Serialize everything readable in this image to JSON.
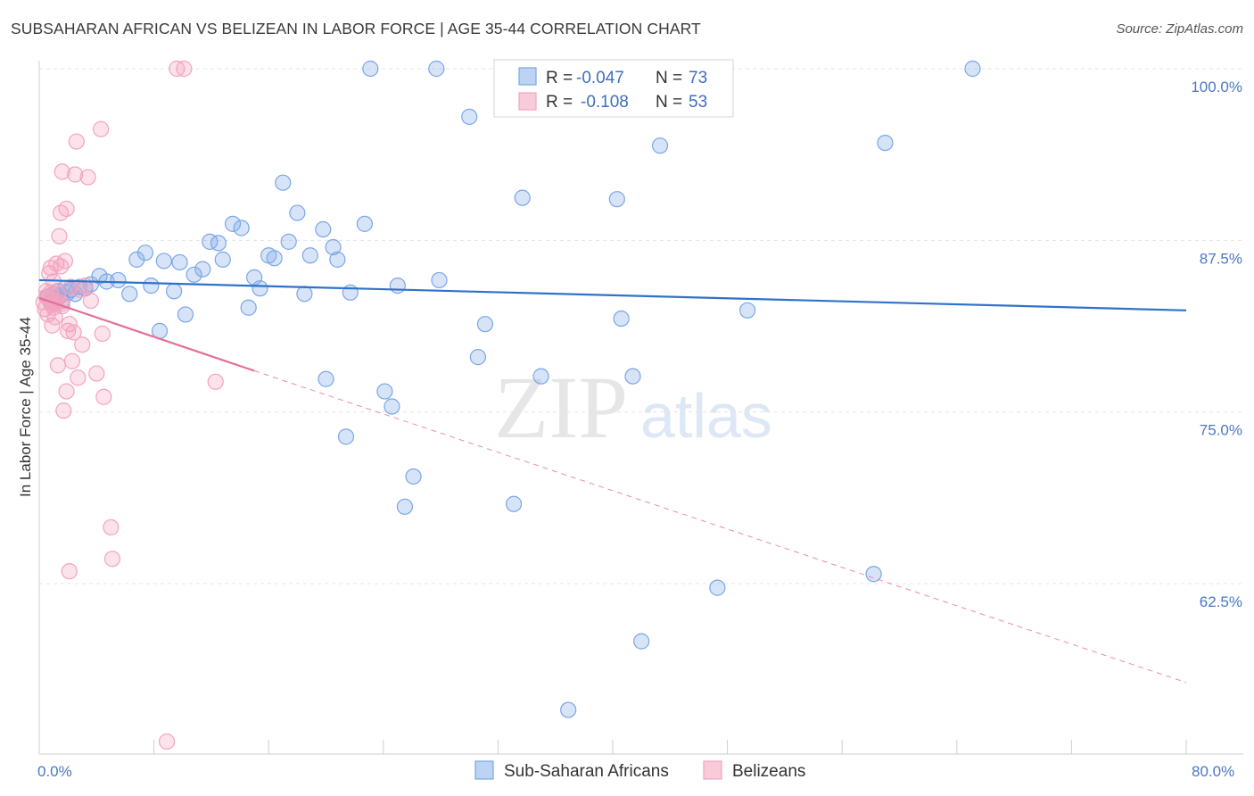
{
  "chart_data": {
    "type": "scatter",
    "title": "SUBSAHARAN AFRICAN VS BELIZEAN IN LABOR FORCE | AGE 35-44 CORRELATION CHART",
    "source": "Source: ZipAtlas.com",
    "watermark": {
      "zip": "ZIP",
      "atlas": "atlas"
    },
    "ylabel": "In Labor Force | Age 35-44",
    "xlim": [
      0,
      80
    ],
    "ylim": [
      51,
      102
    ],
    "x_tick_labels": {
      "left": "0.0%",
      "right": "80.0%"
    },
    "y_ticks": [
      {
        "value": 100,
        "label": "100.0%"
      },
      {
        "value": 87.5,
        "label": "87.5%"
      },
      {
        "value": 75,
        "label": "75.0%"
      },
      {
        "value": 62.5,
        "label": "62.5%"
      }
    ],
    "legend": {
      "r_label": "R =",
      "n_label": "N =",
      "entries": [
        {
          "r": "-0.047",
          "n": "73"
        },
        {
          "r": "-0.108",
          "n": "53"
        }
      ]
    },
    "series": [
      {
        "name": "Sub-Saharan Africans",
        "color": "#7aa6e8",
        "line_color": "#2f72c9",
        "trend": {
          "x0": 0,
          "y0": 84.6,
          "x1": 80,
          "y1": 82.4
        },
        "points": [
          [
            0.6,
            83.4
          ],
          [
            0.8,
            83.0
          ],
          [
            1.0,
            83.6
          ],
          [
            1.2,
            83.2
          ],
          [
            1.3,
            83.8
          ],
          [
            1.5,
            83.5
          ],
          [
            1.6,
            83.1
          ],
          [
            1.8,
            84.0
          ],
          [
            2.0,
            83.7
          ],
          [
            2.2,
            83.9
          ],
          [
            2.5,
            83.6
          ],
          [
            2.8,
            84.1
          ],
          [
            3.2,
            84.0
          ],
          [
            3.6,
            84.3
          ],
          [
            4.2,
            84.9
          ],
          [
            4.7,
            84.5
          ],
          [
            5.5,
            84.6
          ],
          [
            6.3,
            83.6
          ],
          [
            6.8,
            86.1
          ],
          [
            7.4,
            86.6
          ],
          [
            7.8,
            84.2
          ],
          [
            8.4,
            80.9
          ],
          [
            8.7,
            86.0
          ],
          [
            9.4,
            83.8
          ],
          [
            9.8,
            85.9
          ],
          [
            10.2,
            82.1
          ],
          [
            10.8,
            85.0
          ],
          [
            11.4,
            85.4
          ],
          [
            11.9,
            87.4
          ],
          [
            12.5,
            87.3
          ],
          [
            12.8,
            86.1
          ],
          [
            13.5,
            88.7
          ],
          [
            14.1,
            88.4
          ],
          [
            14.6,
            82.6
          ],
          [
            15.0,
            84.8
          ],
          [
            15.4,
            84.0
          ],
          [
            16.0,
            86.4
          ],
          [
            16.4,
            86.2
          ],
          [
            17.0,
            91.7
          ],
          [
            17.4,
            87.4
          ],
          [
            18.0,
            89.5
          ],
          [
            18.5,
            83.6
          ],
          [
            18.9,
            86.4
          ],
          [
            19.8,
            88.3
          ],
          [
            20.0,
            77.4
          ],
          [
            20.5,
            87.0
          ],
          [
            20.8,
            86.1
          ],
          [
            21.4,
            73.2
          ],
          [
            21.7,
            83.7
          ],
          [
            22.7,
            88.7
          ],
          [
            23.1,
            100.0
          ],
          [
            24.1,
            76.5
          ],
          [
            24.6,
            75.4
          ],
          [
            25.0,
            84.2
          ],
          [
            25.5,
            68.1
          ],
          [
            26.1,
            70.3
          ],
          [
            27.7,
            100.0
          ],
          [
            27.9,
            84.6
          ],
          [
            30.0,
            96.5
          ],
          [
            30.6,
            79.0
          ],
          [
            31.1,
            81.4
          ],
          [
            33.1,
            68.3
          ],
          [
            33.7,
            90.6
          ],
          [
            35.0,
            77.6
          ],
          [
            36.9,
            53.3
          ],
          [
            40.3,
            90.5
          ],
          [
            40.6,
            81.8
          ],
          [
            41.4,
            77.6
          ],
          [
            42.0,
            58.3
          ],
          [
            43.3,
            94.4
          ],
          [
            47.3,
            62.2
          ],
          [
            49.4,
            82.4
          ],
          [
            59.0,
            94.6
          ],
          [
            58.2,
            63.2
          ],
          [
            65.1,
            100.0
          ]
        ]
      },
      {
        "name": "Belizeans",
        "color": "#f4a3bd",
        "line_color": "#e46f98",
        "trend": {
          "x0": 0,
          "y0": 83.3,
          "x1": 15,
          "y1": 78.0
        },
        "trend_ext": {
          "x0": 15,
          "y0": 78.0,
          "x1": 80,
          "y1": 55.3
        },
        "points": [
          [
            0.3,
            83.0
          ],
          [
            0.4,
            82.5
          ],
          [
            0.5,
            83.8
          ],
          [
            0.6,
            82.1
          ],
          [
            0.7,
            83.3
          ],
          [
            0.8,
            85.5
          ],
          [
            0.9,
            82.8
          ],
          [
            0.9,
            81.3
          ],
          [
            1.0,
            84.5
          ],
          [
            1.1,
            82.9
          ],
          [
            1.1,
            81.9
          ],
          [
            1.2,
            85.8
          ],
          [
            1.3,
            83.6
          ],
          [
            1.3,
            78.4
          ],
          [
            1.4,
            87.8
          ],
          [
            1.5,
            89.5
          ],
          [
            1.5,
            85.6
          ],
          [
            1.6,
            92.5
          ],
          [
            1.6,
            82.7
          ],
          [
            1.7,
            75.1
          ],
          [
            1.8,
            86.0
          ],
          [
            1.9,
            89.8
          ],
          [
            1.9,
            76.5
          ],
          [
            2.0,
            80.9
          ],
          [
            2.1,
            81.4
          ],
          [
            2.1,
            63.4
          ],
          [
            2.3,
            78.7
          ],
          [
            2.4,
            80.8
          ],
          [
            2.5,
            92.3
          ],
          [
            2.6,
            94.7
          ],
          [
            2.7,
            77.5
          ],
          [
            2.8,
            83.9
          ],
          [
            3.0,
            79.9
          ],
          [
            3.2,
            84.2
          ],
          [
            3.4,
            92.1
          ],
          [
            3.6,
            83.1
          ],
          [
            4.0,
            77.8
          ],
          [
            4.3,
            95.6
          ],
          [
            4.4,
            80.7
          ],
          [
            4.5,
            76.1
          ],
          [
            5.0,
            66.6
          ],
          [
            5.1,
            64.3
          ],
          [
            8.9,
            51.0
          ],
          [
            9.6,
            100.0
          ],
          [
            10.1,
            100.0
          ],
          [
            12.3,
            77.2
          ],
          [
            1.2,
            83.1
          ],
          [
            0.8,
            83.7
          ],
          [
            0.5,
            83.4
          ],
          [
            1.6,
            82.9
          ],
          [
            2.2,
            84.1
          ],
          [
            1.0,
            82.6
          ],
          [
            0.7,
            85.1
          ]
        ]
      }
    ]
  }
}
